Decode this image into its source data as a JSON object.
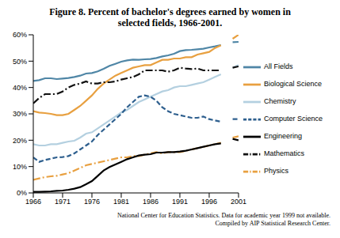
{
  "chart_data": {
    "type": "line",
    "title": "Figure 8.  Percent of bachelor's degrees earned by women in selected fields, 1966-2001.",
    "notes": [
      "National Center for Education Statistics. Data for academic year 1999 not available.",
      "Compiled by AIP Statistical Research Center."
    ],
    "x": [
      1966,
      1967,
      1968,
      1969,
      1970,
      1971,
      1972,
      1973,
      1974,
      1975,
      1976,
      1977,
      1978,
      1979,
      1980,
      1981,
      1982,
      1983,
      1984,
      1985,
      1986,
      1987,
      1988,
      1989,
      1990,
      1991,
      1992,
      1993,
      1994,
      1995,
      1996,
      1997,
      1998,
      1999,
      2000,
      2001
    ],
    "xlim": [
      1966,
      2001
    ],
    "xticks": [
      1966,
      1971,
      1976,
      1981,
      1986,
      1991,
      1996,
      2001
    ],
    "ylim": [
      0,
      60
    ],
    "yticks": [
      {
        "value": 0,
        "label": "0%"
      },
      {
        "value": 10,
        "label": "10%"
      },
      {
        "value": 20,
        "label": "20%"
      },
      {
        "value": 30,
        "label": "30%"
      },
      {
        "value": 40,
        "label": "40%"
      },
      {
        "value": 50,
        "label": "50%"
      },
      {
        "value": 60,
        "label": "60%"
      }
    ],
    "grid": false,
    "legend": "right",
    "series": [
      {
        "name": "All Fields",
        "color": "#4f86a6",
        "line_style": "solid",
        "values": [
          42.5,
          42.8,
          43.5,
          43.5,
          43.2,
          43.4,
          43.6,
          44,
          44.5,
          45.3,
          45.5,
          46.1,
          47.1,
          48.2,
          49,
          49.8,
          50.3,
          50.6,
          50.5,
          50.7,
          50.8,
          51.2,
          51.8,
          52.2,
          52.8,
          53.8,
          54.2,
          54.3,
          54.5,
          54.7,
          55.2,
          55.6,
          56.1,
          null,
          57.2,
          57.3
        ]
      },
      {
        "name": "Biological Science",
        "color": "#e8a040",
        "line_style": "solid",
        "values": [
          31,
          30.5,
          30.3,
          30,
          29.5,
          29.5,
          30,
          31.5,
          33,
          35,
          37,
          39.5,
          41.5,
          43,
          44.5,
          45.5,
          46.5,
          47.5,
          48,
          48.5,
          48.5,
          49.5,
          50.5,
          50.5,
          51,
          51,
          51.5,
          51.5,
          52.5,
          53,
          53.5,
          55,
          56,
          null,
          58.5,
          60
        ]
      },
      {
        "name": "Chemistry",
        "color": "#b4d0e0",
        "line_style": "solid",
        "values": [
          18.5,
          18,
          18,
          18.5,
          18.5,
          19,
          19.5,
          19.8,
          21,
          22.5,
          23,
          24.5,
          26,
          27.5,
          29,
          30.5,
          31.5,
          33,
          34.5,
          35.5,
          36.5,
          37.5,
          38.5,
          39,
          40,
          40.5,
          40.5,
          41,
          41.5,
          42,
          43,
          44,
          45,
          null,
          47.5,
          48.5
        ]
      },
      {
        "name": "Computer Science",
        "color": "#2e5f8e",
        "line_style": "dashed",
        "values": [
          13.5,
          11.8,
          12.5,
          13,
          13.5,
          13.6,
          14,
          15,
          16.5,
          18,
          19.5,
          22,
          24,
          26,
          28,
          30,
          32.5,
          34.5,
          36.5,
          37,
          36.5,
          35,
          32.5,
          31,
          30,
          29.5,
          29,
          28.5,
          28.5,
          29,
          28,
          27.5,
          27,
          null,
          28,
          28
        ]
      },
      {
        "name": "Mathematics",
        "color": "#111111",
        "line_style": "dashdot",
        "values": [
          34,
          36,
          37.5,
          37.5,
          37.5,
          38.5,
          40,
          41,
          41.5,
          42.3,
          41.5,
          41.5,
          42,
          42,
          42.3,
          43,
          43.5,
          44,
          45,
          46.5,
          46.5,
          46.5,
          46.5,
          46,
          46.5,
          47.5,
          47.2,
          47,
          47.2,
          46.5,
          46.5,
          46.5,
          46.5,
          null,
          47.5,
          48
        ]
      },
      {
        "name": "Physics",
        "color": "#e8a040",
        "line_style": "dashdot",
        "values": [
          5,
          5.5,
          6,
          6.3,
          6.5,
          7,
          7.5,
          8.5,
          9.5,
          10.5,
          11,
          11.5,
          12,
          12.5,
          13,
          13.5,
          13.5,
          14,
          14,
          14.5,
          15,
          15.5,
          15,
          15.5,
          15.5,
          15.5,
          16,
          16.5,
          17,
          17.5,
          18,
          18.5,
          19,
          null,
          21,
          21.5
        ]
      },
      {
        "name": "Engineering",
        "color": "#000000",
        "line_style": "solid",
        "values": [
          0.4,
          0.4,
          0.5,
          0.6,
          0.8,
          0.9,
          1.2,
          1.6,
          2.2,
          3.3,
          4.5,
          6.5,
          8.5,
          9.8,
          10.8,
          11.8,
          12.8,
          13.5,
          14.2,
          14.5,
          14.7,
          15.3,
          15.3,
          15.5,
          15.5,
          15.7,
          16,
          16.5,
          17,
          17.5,
          18,
          18.5,
          18.8,
          null,
          20.5,
          20
        ]
      }
    ]
  }
}
